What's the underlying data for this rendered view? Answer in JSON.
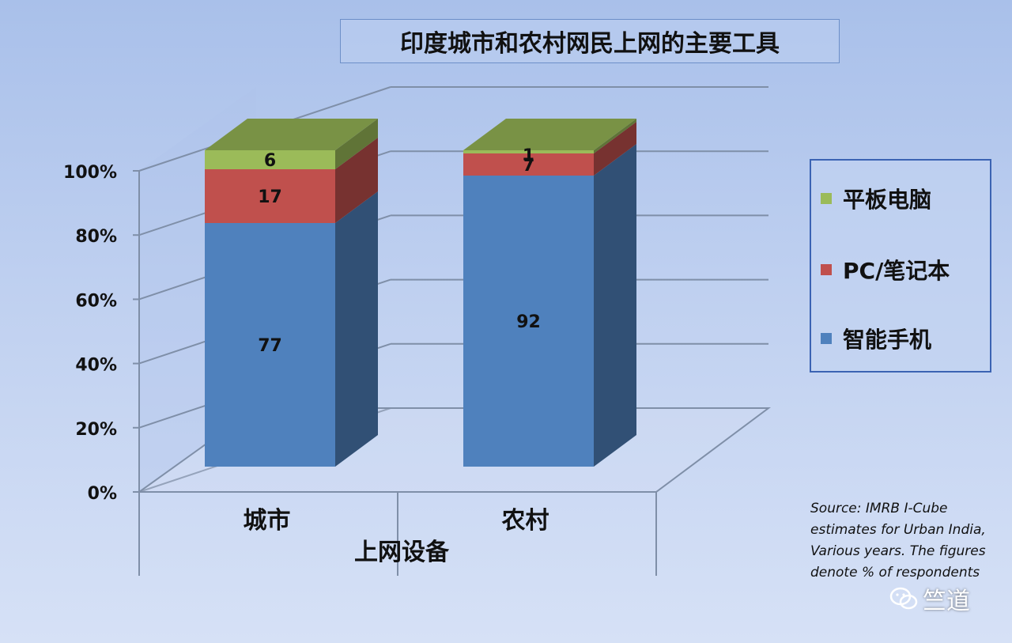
{
  "chart_data": {
    "type": "bar",
    "stacked": true,
    "three_d": true,
    "title": "印度城市和农村网民上网的主要工具",
    "xlabel": "上网设备",
    "ylabel": "",
    "categories": [
      "城市",
      "农村"
    ],
    "series": [
      {
        "name": "智能手机",
        "values": [
          77,
          92
        ],
        "color": "#4f81bd"
      },
      {
        "name": "PC/笔记本",
        "values": [
          17,
          7
        ],
        "color": "#c0504d"
      },
      {
        "name": "平板电脑",
        "values": [
          6,
          1
        ],
        "color": "#9bbb59"
      }
    ],
    "ylim": [
      0,
      100
    ],
    "y_ticks": [
      "0%",
      "20%",
      "40%",
      "60%",
      "80%",
      "100%"
    ],
    "grid": true,
    "legend": "right"
  },
  "source_note": "Source: IMRB I-Cube estimates for Urban India, Various years. The figures denote % of respondents",
  "watermark": {
    "text": "竺道",
    "icon": "wechat-icon"
  }
}
